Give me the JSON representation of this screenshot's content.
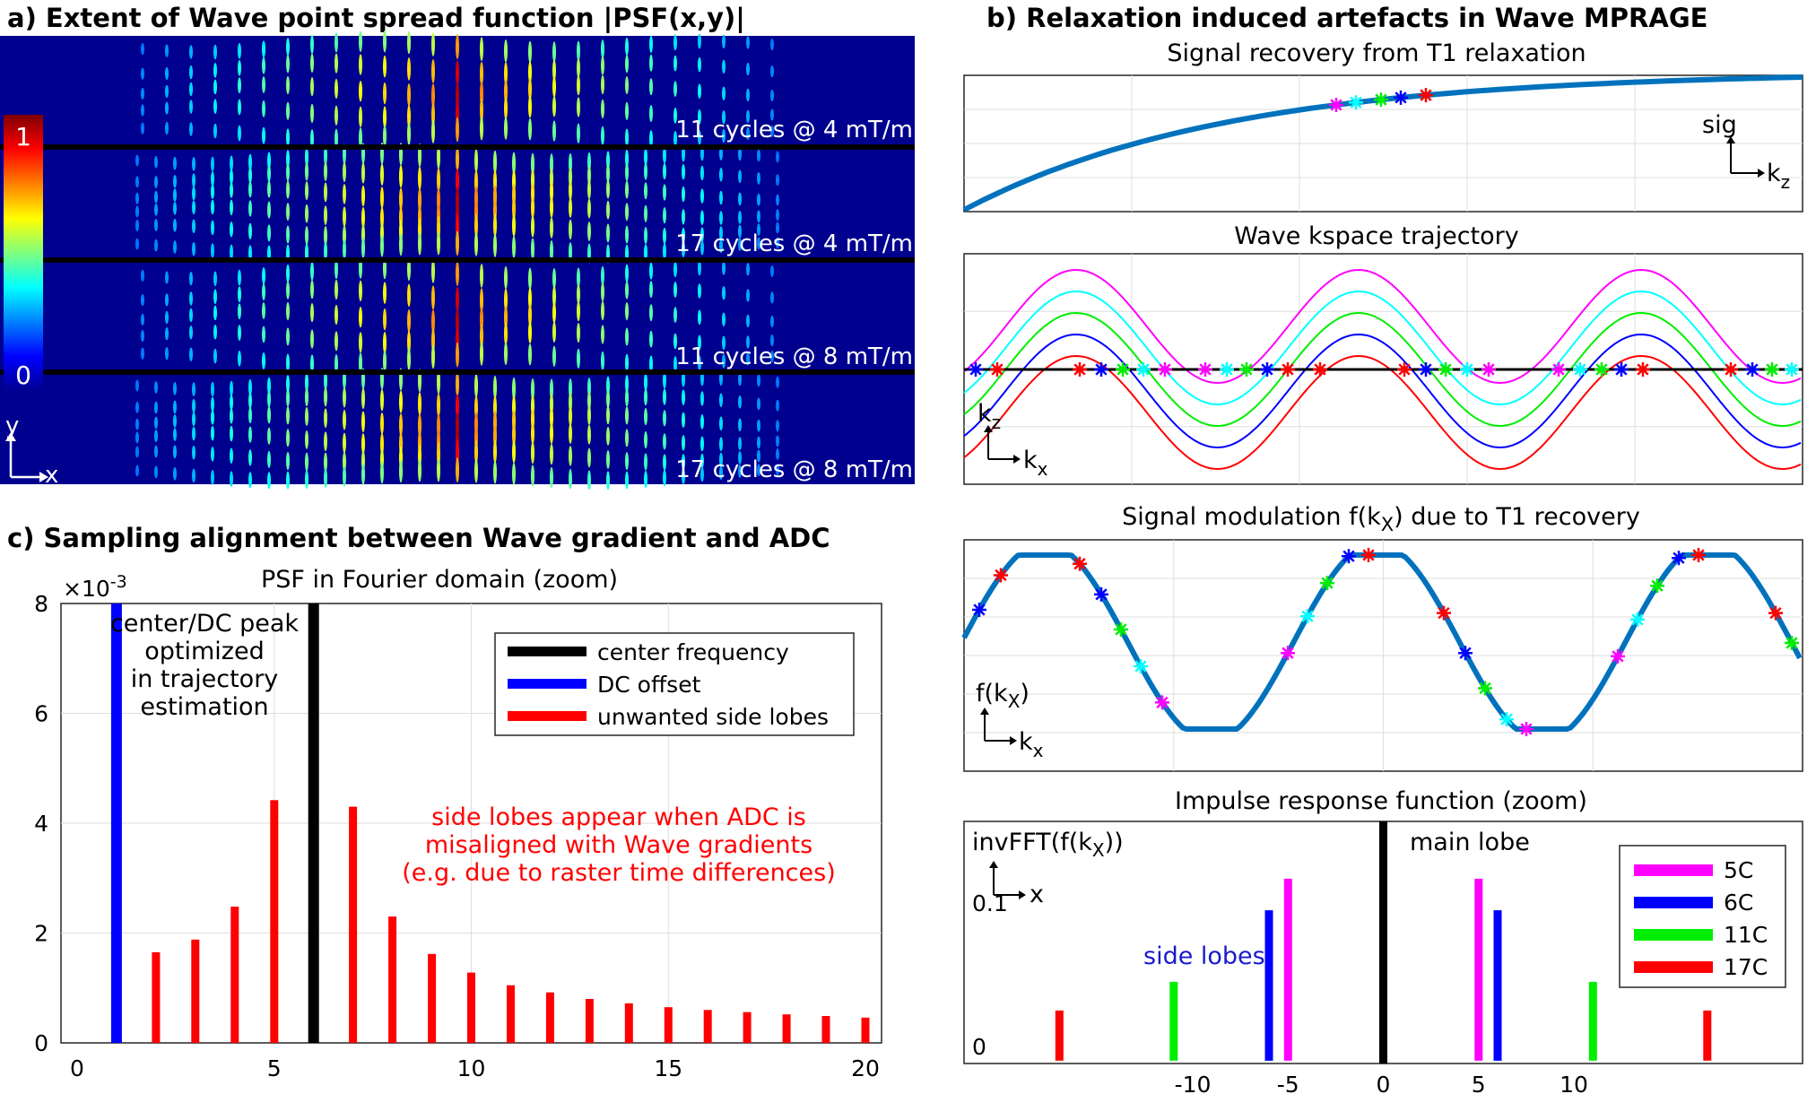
{
  "panel_a": {
    "title": "a) Extent of Wave point spread function |PSF(x,y)|",
    "colorbar": {
      "max_label": "1",
      "min_label": "0"
    },
    "axis": {
      "y": "y",
      "x": "x"
    },
    "strips": [
      {
        "label": "11 cycles @ 4 mT/m",
        "cycles": 11
      },
      {
        "label": "17 cycles @ 4 mT/m",
        "cycles": 17
      },
      {
        "label": "11 cycles @ 8 mT/m",
        "cycles": 11
      },
      {
        "label": "17 cycles @ 8 mT/m",
        "cycles": 17
      }
    ]
  },
  "panel_b": {
    "title": "b) Relaxation induced artefacts in Wave MPRAGE",
    "recovery": {
      "title": "Signal recovery from T1 relaxation",
      "ylabel": "sig",
      "xlabel": "k",
      "xsub": "z"
    },
    "kspace": {
      "title": "Wave kspace trajectory",
      "ylabel": "k",
      "ysub": "z",
      "xlabel": "k",
      "xsub": "x"
    },
    "modulation": {
      "title_main": "Signal modulation f(k",
      "title_sub": "X",
      "title_end": ") due to T1 recovery",
      "ylabel": "f(k",
      "ysub": "X",
      "yend": ")",
      "xlabel": "k",
      "xsub": "x"
    },
    "colors": {
      "magenta": "#ff00ff",
      "cyan": "#00ffff",
      "green": "#00ee00",
      "blue": "#0000ff",
      "red": "#ff0000",
      "line": "#0072bd"
    }
  },
  "panel_c": {
    "title": "c) Sampling alignment between Wave gradient and ADC",
    "annotation_center": [
      "center/DC peak",
      "optimized",
      "in trajectory",
      "estimation"
    ],
    "annotation_side": [
      "side lobes appear when ADC is",
      "misaligned with Wave gradients",
      "(e.g. due to raster time differences)"
    ],
    "exponent": {
      "base": "×10",
      "power": "-3"
    }
  },
  "chart_data": [
    {
      "type": "bar",
      "title": "PSF in Fourier domain (zoom)",
      "xlabel": "",
      "ylabel": "",
      "xlim": [
        0,
        20
      ],
      "ylim": [
        0,
        8
      ],
      "xticks": [
        "0",
        "5",
        "10",
        "15",
        "20"
      ],
      "yticks": [
        "0",
        "2",
        "4",
        "6",
        "8"
      ],
      "legend": [
        "center frequency",
        "DC offset",
        "unwanted side lobes"
      ],
      "legend_position": "top-right",
      "series": [
        {
          "name": "center frequency",
          "color": "#000000",
          "x": [
            6
          ],
          "values": [
            8.0
          ]
        },
        {
          "name": "DC offset",
          "color": "#0000ff",
          "x": [
            1
          ],
          "values": [
            8.0
          ]
        },
        {
          "name": "unwanted side lobes",
          "color": "#ff0000",
          "x": [
            2,
            3,
            4,
            5,
            7,
            8,
            9,
            10,
            11,
            12,
            13,
            14,
            15,
            16,
            17,
            18,
            19,
            20
          ],
          "values": [
            1.65,
            1.88,
            2.48,
            4.42,
            4.3,
            2.3,
            1.62,
            1.28,
            1.05,
            0.92,
            0.8,
            0.72,
            0.65,
            0.6,
            0.56,
            0.52,
            0.49,
            0.46
          ]
        }
      ]
    },
    {
      "type": "bar",
      "title": "Impulse response function (zoom)",
      "ylabel": "invFFT(f(k",
      "ylabel_sub": "X",
      "ylabel_end": "))",
      "xlabel": "x",
      "xlim": [
        -22,
        22
      ],
      "ylim": [
        -0.012,
        0.157
      ],
      "xticks": [
        "-10",
        "-5",
        "0",
        "5",
        "10"
      ],
      "yticks": [
        "0",
        "0.1"
      ],
      "annotation_main": "main lobe",
      "annotation_side": "side lobes",
      "legend": [
        "5C",
        "6C",
        "11C",
        "17C"
      ],
      "legend_position": "right",
      "series": [
        {
          "name": "5C",
          "color": "#ff00ff",
          "x": [
            -5,
            5
          ],
          "values": [
            0.117,
            0.117
          ]
        },
        {
          "name": "6C",
          "color": "#0000ff",
          "x": [
            -6,
            6
          ],
          "values": [
            0.095,
            0.095
          ]
        },
        {
          "name": "11C",
          "color": "#00ee00",
          "x": [
            -11,
            11
          ],
          "values": [
            0.045,
            0.045
          ]
        },
        {
          "name": "17C",
          "color": "#ff0000",
          "x": [
            -17,
            17
          ],
          "values": [
            0.025,
            0.025
          ]
        },
        {
          "name": "main lobe",
          "color": "#000000",
          "x": [
            0
          ],
          "values": [
            0.157
          ]
        }
      ]
    }
  ]
}
